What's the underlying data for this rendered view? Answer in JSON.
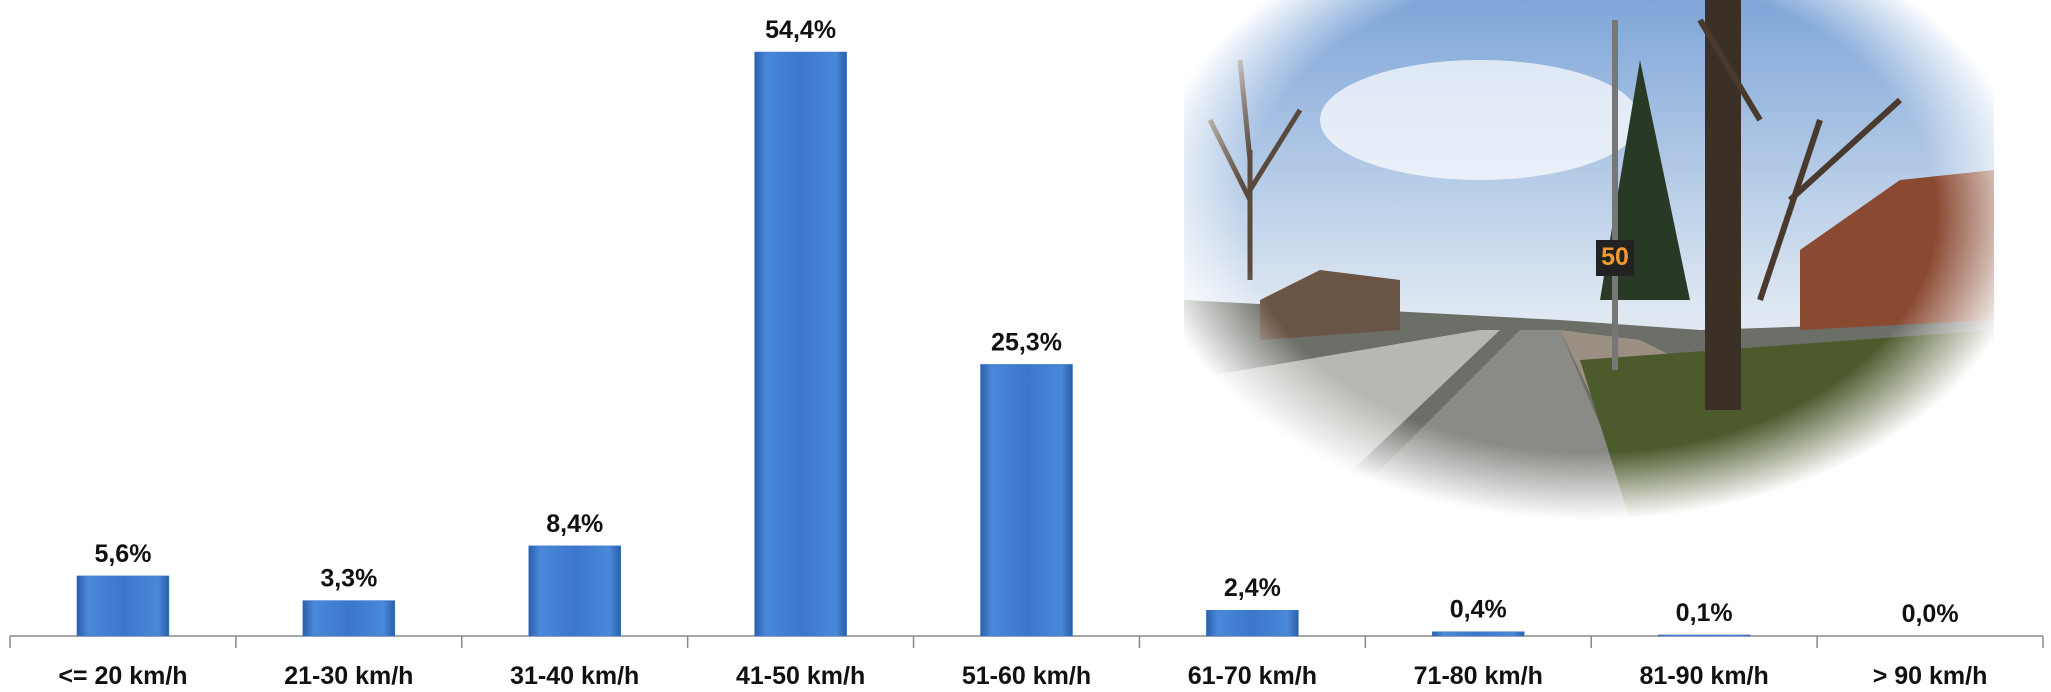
{
  "chart_data": {
    "type": "bar",
    "categories": [
      "<= 20 km/h",
      "21-30 km/h",
      "31-40 km/h",
      "41-50 km/h",
      "51-60 km/h",
      "61-70 km/h",
      "71-80 km/h",
      "81-90 km/h",
      "> 90 km/h"
    ],
    "values": [
      5.6,
      3.3,
      8.4,
      54.4,
      25.3,
      2.4,
      0.4,
      0.1,
      0.0
    ],
    "value_labels": [
      "5,6%",
      "3,3%",
      "8,4%",
      "54,4%",
      "25,3%",
      "2,4%",
      "0,4%",
      "0,1%",
      "0,0%"
    ],
    "color": "#3b78cc"
  }
}
